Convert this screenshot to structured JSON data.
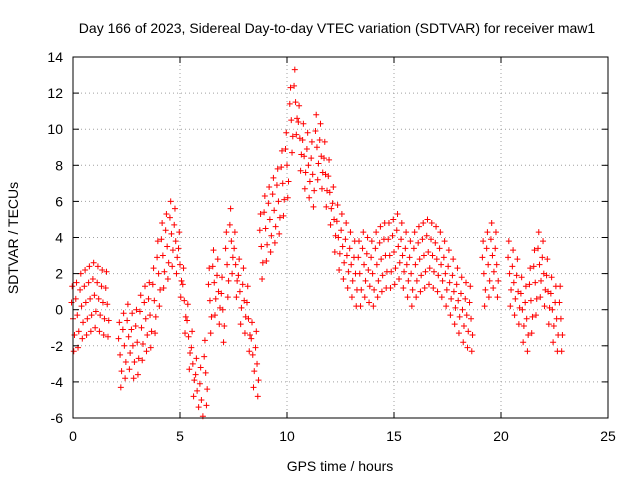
{
  "chart_data": {
    "type": "scatter",
    "title": "Day 166 of 2023, Sidereal Day-to-day VTEC variation (SDTVAR) for receiver maw1",
    "xlabel": "GPS time / hours",
    "ylabel": "SDTVAR / TECUs",
    "xlim": [
      0,
      25
    ],
    "ylim": [
      -6,
      14
    ],
    "xticks": [
      0,
      5,
      10,
      15,
      20,
      25
    ],
    "yticks": [
      -6,
      -4,
      -2,
      0,
      2,
      4,
      6,
      8,
      10,
      12,
      14
    ],
    "grid": true,
    "marker": "+",
    "series": [
      {
        "name": "SDTVAR",
        "color": "#ff0000",
        "x": [
          0.0,
          0.2,
          0.4,
          0.6,
          0.8,
          1.0,
          1.2,
          1.4,
          1.6,
          1.8,
          2.0,
          2.2,
          2.4,
          2.6,
          2.8,
          3.0,
          3.2,
          3.4,
          3.6,
          3.8,
          4.0,
          4.2,
          4.4,
          4.6,
          4.8,
          5.0,
          5.2,
          5.4,
          5.6,
          5.8,
          6.0,
          6.2,
          6.4,
          6.6,
          6.8,
          7.0,
          7.2,
          7.4,
          7.6,
          7.8,
          8.0,
          8.2,
          8.4,
          8.6,
          8.8,
          9.0,
          9.2,
          9.4,
          9.6,
          9.8,
          10.0,
          10.2,
          10.4,
          10.6,
          10.8,
          11.0,
          11.2,
          11.4,
          11.6,
          11.8,
          12.0,
          12.2,
          12.4,
          12.6,
          12.8,
          13.0,
          13.2,
          13.4,
          13.6,
          13.8,
          14.0,
          14.2,
          14.4,
          14.6,
          14.8,
          15.0,
          15.2,
          15.4,
          15.6,
          15.8,
          16.0,
          16.2,
          16.4,
          16.6,
          16.8,
          17.0,
          17.2,
          17.4,
          17.6,
          17.8,
          18.0,
          18.2,
          18.4,
          18.6,
          18.8,
          19.0,
          19.2,
          19.4,
          19.6,
          19.8,
          20.0,
          20.2,
          20.4,
          20.6,
          20.8,
          21.0,
          21.2,
          21.4,
          21.6,
          21.8,
          22.0,
          22.2,
          22.4,
          22.6,
          22.8
        ],
        "y": [
          -0.5,
          -0.3,
          0.2,
          0.4,
          0.6,
          0.8,
          0.6,
          0.4,
          0.3,
          null,
          null,
          -2.5,
          -2.0,
          -1.5,
          -2.0,
          -1.8,
          -1.0,
          -0.5,
          -0.3,
          0.5,
          2.0,
          3.0,
          3.5,
          4.2,
          3.8,
          2.5,
          0.5,
          -1.5,
          -3.0,
          -4.5,
          -5.0,
          -3.5,
          0.5,
          1.5,
          1.0,
          0.0,
          2.5,
          3.8,
          2.5,
          1.0,
          0.5,
          -0.5,
          -2.5,
          -3.0,
          3.5,
          4.5,
          5.0,
          5.5,
          6.0,
          7.0,
          8.0,
          10.5,
          11.5,
          9.5,
          8.5,
          8.0,
          7.5,
          9.0,
          8.5,
          7.5,
          6.5,
          5.0,
          4.0,
          3.5,
          3.0,
          2.5,
          2.0,
          2.0,
          2.5,
          2.2,
          2.0,
          2.5,
          2.8,
          3.0,
          3.0,
          3.2,
          3.5,
          3.0,
          2.5,
          2.0,
          2.5,
          2.8,
          3.0,
          3.2,
          3.0,
          2.8,
          2.5,
          2.0,
          1.5,
          1.0,
          0.5,
          0.0,
          -0.3,
          -0.5,
          null,
          null,
          2.0,
          2.5,
          3.0,
          2.5,
          null,
          null,
          2.0,
          1.5,
          1.0,
          0.0,
          -0.5,
          0.5,
          1.5,
          2.5,
          2.0,
          1.0,
          0.0,
          -0.5,
          -0.5
        ]
      }
    ]
  }
}
